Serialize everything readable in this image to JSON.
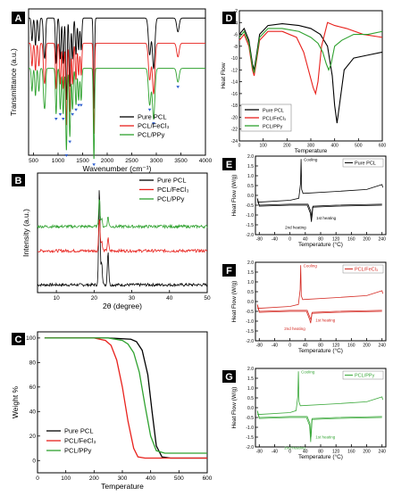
{
  "chart_data": [
    {
      "panel": "A",
      "type": "line",
      "xlabel": "Wavenumber (cm⁻¹)",
      "ylabel": "Transmittance (a.u.)",
      "xlim": [
        400,
        4000
      ],
      "xticks": [
        500,
        1000,
        1500,
        2000,
        2500,
        3000,
        3500,
        4000
      ],
      "legend_position": "lower-right",
      "series": [
        {
          "name": "Pure PCL",
          "color": "#000000",
          "offset": 0.0,
          "peaks": [
            [
              470,
              0.25
            ],
            [
              540,
              0.3
            ],
            [
              610,
              0.25
            ],
            [
              710,
              0.3
            ],
            [
              735,
              0.35
            ],
            [
              960,
              0.5
            ],
            [
              1045,
              0.45
            ],
            [
              1105,
              0.5
            ],
            [
              1170,
              0.9
            ],
            [
              1240,
              0.75
            ],
            [
              1295,
              0.45
            ],
            [
              1365,
              0.4
            ],
            [
              1420,
              0.35
            ],
            [
              1470,
              0.35
            ],
            [
              1730,
              1.0
            ],
            [
              2865,
              0.4
            ],
            [
              2945,
              0.55
            ],
            [
              3440,
              0.15
            ]
          ]
        },
        {
          "name": "PCL/FeCl₃",
          "color": "#e8211c",
          "offset": 0.55,
          "peaks": [
            [
              470,
              0.25
            ],
            [
              540,
              0.3
            ],
            [
              610,
              0.25
            ],
            [
              710,
              0.3
            ],
            [
              735,
              0.35
            ],
            [
              960,
              0.5
            ],
            [
              1045,
              0.45
            ],
            [
              1105,
              0.5
            ],
            [
              1170,
              0.9
            ],
            [
              1240,
              0.75
            ],
            [
              1295,
              0.45
            ],
            [
              1365,
              0.4
            ],
            [
              1420,
              0.35
            ],
            [
              1470,
              0.35
            ],
            [
              1730,
              1.0
            ],
            [
              2865,
              0.4
            ],
            [
              2945,
              0.55
            ],
            [
              3440,
              0.15
            ]
          ]
        },
        {
          "name": "PCL/PPy",
          "color": "#2ea12e",
          "offset": 1.1,
          "peaks": [
            [
              470,
              0.25
            ],
            [
              540,
              0.3
            ],
            [
              610,
              0.25
            ],
            [
              710,
              0.3
            ],
            [
              735,
              0.35
            ],
            [
              960,
              0.5
            ],
            [
              1045,
              0.45
            ],
            [
              1105,
              0.5
            ],
            [
              1170,
              0.9
            ],
            [
              1240,
              0.75
            ],
            [
              1295,
              0.45
            ],
            [
              1365,
              0.4
            ],
            [
              1420,
              0.35
            ],
            [
              1470,
              0.35
            ],
            [
              1730,
              1.0
            ],
            [
              2865,
              0.4
            ],
            [
              2945,
              0.55
            ],
            [
              3440,
              0.15
            ]
          ]
        }
      ],
      "markers": [
        960,
        1045,
        1105,
        1170,
        1240,
        1295,
        1365,
        1420,
        1470,
        1730,
        2865,
        2945,
        3440
      ]
    },
    {
      "panel": "B",
      "type": "line",
      "xlabel": "2θ (degree)",
      "ylabel": "Intensity (a.u.)",
      "xlim": [
        5,
        50
      ],
      "xticks": [
        10,
        20,
        30,
        40,
        50
      ],
      "legend_position": "top-right",
      "series": [
        {
          "name": "Pure PCL",
          "color": "#000000",
          "baseline": 0.0,
          "peaks": [
            [
              21.4,
              1.0
            ],
            [
              22.0,
              0.25
            ],
            [
              23.7,
              0.35
            ]
          ]
        },
        {
          "name": "PCL/FeCl₃",
          "color": "#e8211c",
          "baseline": 0.35,
          "peaks": [
            [
              21.4,
              0.35
            ],
            [
              22.0,
              0.1
            ],
            [
              23.7,
              0.13
            ]
          ]
        },
        {
          "name": "PCL/PPy",
          "color": "#2ea12e",
          "baseline": 0.6,
          "peaks": [
            [
              21.4,
              0.3
            ],
            [
              22.0,
              0.08
            ],
            [
              23.7,
              0.1
            ]
          ]
        }
      ]
    },
    {
      "panel": "C",
      "type": "line",
      "xlabel": "Temperature",
      "ylabel": "Weight %",
      "xlim": [
        0,
        600
      ],
      "ylim": [
        -10,
        105
      ],
      "xticks": [
        0,
        100,
        200,
        300,
        400,
        500,
        600
      ],
      "yticks": [
        0,
        20,
        40,
        60,
        80,
        100
      ],
      "legend_position": "bottom-left",
      "series": [
        {
          "name": "Pure PCL",
          "color": "#000000",
          "x": [
            25,
            250,
            330,
            350,
            370,
            390,
            405,
            420,
            440,
            470,
            600
          ],
          "y": [
            100,
            100,
            99,
            97,
            90,
            70,
            40,
            12,
            3,
            2,
            2
          ]
        },
        {
          "name": "PCL/FeCl₃",
          "color": "#e8211c",
          "x": [
            25,
            200,
            240,
            260,
            280,
            300,
            320,
            340,
            355,
            380,
            600
          ],
          "y": [
            100,
            100,
            98,
            94,
            82,
            60,
            32,
            10,
            3,
            2,
            2
          ]
        },
        {
          "name": "PCL/PPy",
          "color": "#2ea12e",
          "x": [
            25,
            250,
            300,
            320,
            340,
            360,
            380,
            400,
            420,
            450,
            600
          ],
          "y": [
            100,
            100,
            98,
            95,
            88,
            72,
            45,
            20,
            8,
            6,
            6
          ]
        }
      ]
    },
    {
      "panel": "D",
      "type": "line",
      "xlabel": "Temperature",
      "ylabel": "Heat Flow",
      "xlim": [
        0,
        600
      ],
      "ylim": [
        -24,
        -2
      ],
      "xticks": [
        0,
        100,
        200,
        300,
        400,
        500,
        600
      ],
      "yticks": [
        -2,
        -4,
        -6,
        -8,
        -10,
        -12,
        -14,
        -16,
        -18,
        -20,
        -22,
        -24
      ],
      "legend_position": "bottom-left",
      "series": [
        {
          "name": "Pure PCL",
          "color": "#000000",
          "x": [
            0,
            20,
            40,
            55,
            62,
            70,
            85,
            120,
            180,
            250,
            300,
            340,
            370,
            390,
            400,
            410,
            420,
            440,
            480,
            540,
            600
          ],
          "y": [
            -6,
            -5,
            -7,
            -11,
            -12,
            -10,
            -6,
            -4.5,
            -4.2,
            -4.5,
            -5,
            -6,
            -8,
            -13,
            -18,
            -21,
            -18,
            -12,
            -10,
            -9.5,
            -9
          ]
        },
        {
          "name": "PCL/FeCl₃",
          "color": "#e8211c",
          "x": [
            0,
            20,
            40,
            55,
            62,
            70,
            85,
            120,
            180,
            240,
            270,
            290,
            310,
            320,
            330,
            345,
            370,
            400,
            450,
            520,
            600
          ],
          "y": [
            -7,
            -6,
            -8,
            -12,
            -13,
            -11,
            -7,
            -5.5,
            -5.5,
            -6.5,
            -9,
            -12,
            -15,
            -16,
            -14,
            -8,
            -4,
            -4.5,
            -5,
            -6,
            -6.5
          ]
        },
        {
          "name": "PCL/PPy",
          "color": "#2ea12e",
          "x": [
            0,
            20,
            40,
            55,
            62,
            70,
            85,
            120,
            180,
            250,
            300,
            330,
            350,
            365,
            375,
            385,
            400,
            430,
            480,
            540,
            600
          ],
          "y": [
            -6.5,
            -5.5,
            -7.5,
            -11.5,
            -12.5,
            -10.5,
            -6.5,
            -5,
            -5,
            -5.5,
            -6.5,
            -7.5,
            -9,
            -11,
            -12,
            -11,
            -8,
            -7,
            -6,
            -6,
            -5.5
          ]
        }
      ]
    },
    {
      "panel": "E",
      "type": "line",
      "xlabel": "Temperature (°C)",
      "ylabel": "Heat Flow (W/g)",
      "xlim": [
        -90,
        250
      ],
      "ylim": [
        -2.0,
        2.0
      ],
      "xticks": [
        -80,
        -40,
        0,
        40,
        80,
        120,
        160,
        200,
        240
      ],
      "yticks": [
        -2.0,
        -1.5,
        -1.0,
        -0.5,
        0.0,
        0.5,
        1.0,
        1.5,
        2.0
      ],
      "legend_position": "top-right",
      "color": "#000000",
      "legend": "Pure PCL",
      "annotations": [
        "Cooling",
        "1st heating",
        "2nd heating"
      ],
      "cooling_peak": [
        29,
        1.85
      ],
      "heating_peak": [
        57,
        -1.35
      ]
    },
    {
      "panel": "F",
      "type": "line",
      "xlabel": "Temperature (°C)",
      "ylabel": "Heat Flow (W/g)",
      "xlim": [
        -90,
        250
      ],
      "ylim": [
        -2.0,
        2.0
      ],
      "xticks": [
        -80,
        -40,
        0,
        40,
        80,
        120,
        160,
        200,
        240
      ],
      "yticks": [
        -2.0,
        -1.5,
        -1.0,
        -0.5,
        0.0,
        0.5,
        1.0,
        1.5,
        2.0
      ],
      "legend_position": "top-right",
      "color": "#d42a23",
      "legend": "PCL/FeCl₃",
      "annotations": [
        "Cooling",
        "1st heating",
        "2nd heating"
      ],
      "cooling_peak": [
        28,
        1.85
      ],
      "heating_peak": [
        55,
        -1.1
      ]
    },
    {
      "panel": "G",
      "type": "line",
      "xlabel": "Temperature (°C)",
      "ylabel": "Heat Flow (W/g)",
      "xlim": [
        -90,
        250
      ],
      "ylim": [
        -2.0,
        2.0
      ],
      "xticks": [
        -80,
        -40,
        0,
        40,
        80,
        120,
        160,
        200,
        240
      ],
      "yticks": [
        -2.0,
        -1.5,
        -1.0,
        -0.5,
        0.0,
        0.5,
        1.0,
        1.5,
        2.0
      ],
      "legend_position": "top-right",
      "color": "#3aa83a",
      "legend": "PCL/PPy",
      "annotations": [
        "Cooling",
        "1st heating",
        "2nd heating"
      ],
      "cooling_peak": [
        22,
        1.85
      ],
      "heating_peak": [
        55,
        -1.75
      ]
    }
  ]
}
